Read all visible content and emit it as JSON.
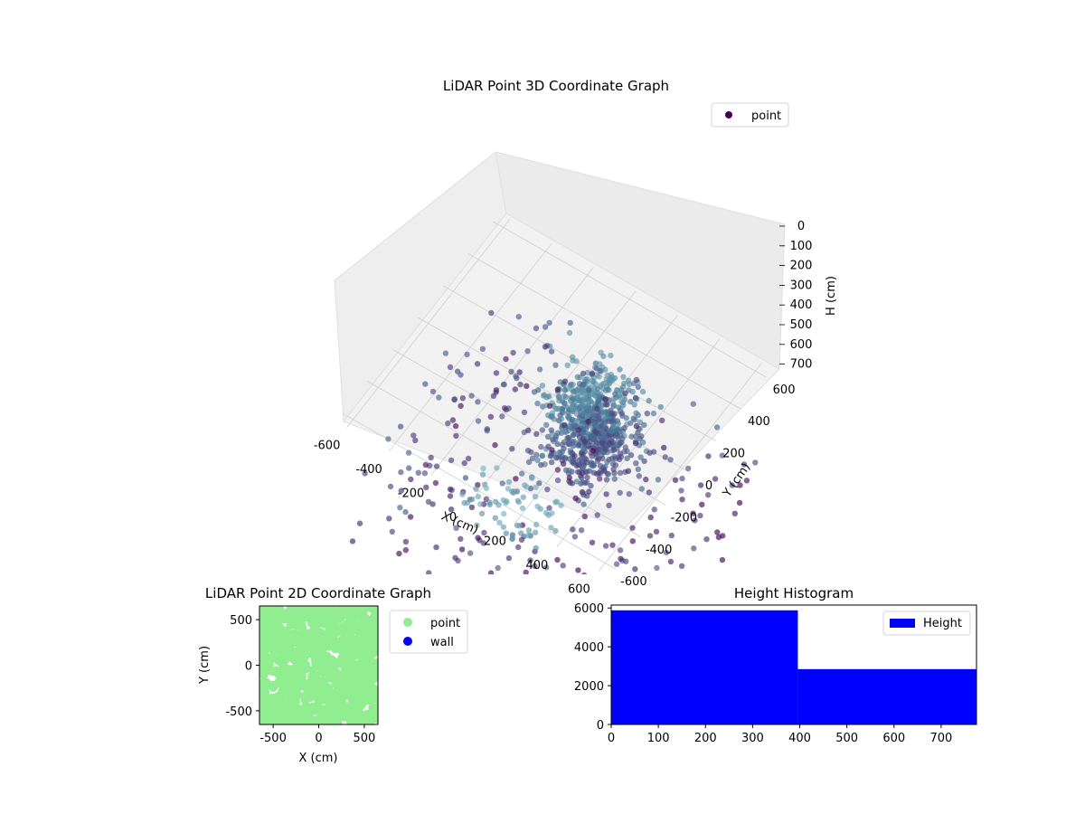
{
  "chart_data": [
    {
      "type": "scatter",
      "title": "LiDAR Point 3D Coordinate Graph",
      "xlabel": "X (cm)",
      "ylabel": "Y (cm)",
      "zlabel": "H (cm)",
      "xlim": [
        -650,
        650
      ],
      "ylim": [
        -650,
        650
      ],
      "zlim": [
        0,
        700
      ],
      "z_inverted": true,
      "x_ticks": [
        -600,
        -400,
        -200,
        0,
        200,
        400,
        600
      ],
      "y_ticks": [
        -600,
        -400,
        -200,
        0,
        200,
        400,
        600
      ],
      "z_ticks": [
        0,
        100,
        200,
        300,
        400,
        500,
        600,
        700
      ],
      "colormap": "viridis (by height)",
      "grid": true,
      "legend": {
        "position": "top-right",
        "entries": [
          {
            "label": "point",
            "color": "#440154"
          }
        ]
      },
      "series": [
        {
          "name": "point",
          "clusters": [
            {
              "desc": "dense structure near center",
              "x_range": [
                -150,
                250
              ],
              "y_range": [
                -50,
                450
              ],
              "h_range": [
                100,
                450
              ],
              "approx_count": 700
            },
            {
              "desc": "scattered points",
              "x_range": [
                -650,
                650
              ],
              "y_range": [
                -650,
                650
              ],
              "h_range": [
                300,
                700
              ],
              "approx_count": 300
            },
            {
              "desc": "floor points",
              "x_range": [
                -100,
                300
              ],
              "y_range": [
                -650,
                -400
              ],
              "h_range": [
                0,
                150
              ],
              "approx_count": 60
            }
          ]
        }
      ]
    },
    {
      "type": "scatter",
      "title": "LiDAR Point 2D Coordinate Graph",
      "xlabel": "X (cm)",
      "ylabel": "Y (cm)",
      "xlim": [
        -650,
        650
      ],
      "ylim": [
        -650,
        650
      ],
      "x_ticks": [
        -500,
        0,
        500
      ],
      "y_ticks": [
        -500,
        0,
        500
      ],
      "legend": {
        "position": "outside-right",
        "entries": [
          {
            "label": "point",
            "color": "#90ee90"
          },
          {
            "label": "wall",
            "color": "#0000ff"
          }
        ]
      },
      "series": [
        {
          "name": "point",
          "color": "#90ee90",
          "region": {
            "x_range": [
              -650,
              650
            ],
            "y_range": [
              -650,
              650
            ]
          }
        },
        {
          "name": "wall",
          "color": "#0000ff",
          "values": []
        }
      ]
    },
    {
      "type": "bar",
      "title": "Height Histogram",
      "xlabel": "",
      "ylabel": "",
      "xlim": [
        0,
        775
      ],
      "ylim": [
        0,
        6150
      ],
      "x_ticks": [
        0,
        100,
        200,
        300,
        400,
        500,
        600,
        700
      ],
      "y_ticks": [
        0,
        2000,
        4000,
        6000
      ],
      "legend": {
        "position": "top-right",
        "entries": [
          {
            "label": "Height",
            "color": "#0000ff"
          }
        ]
      },
      "series": [
        {
          "name": "Height",
          "color": "#0000ff",
          "bins": [
            [
              0,
              396
            ],
            [
              396,
              775
            ]
          ],
          "values": [
            5880,
            2850
          ]
        }
      ]
    }
  ]
}
